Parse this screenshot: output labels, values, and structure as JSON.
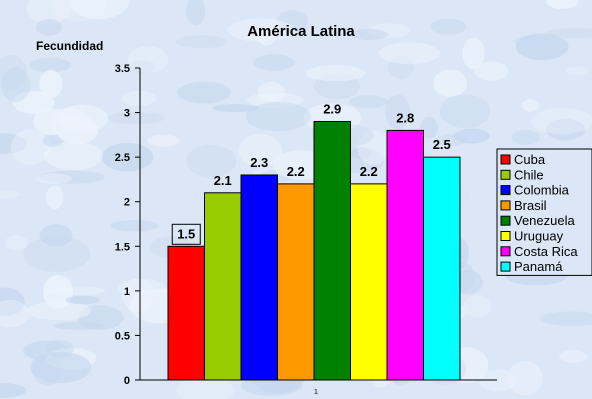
{
  "chart_data": {
    "type": "bar",
    "title": "América Latina",
    "ylabel": "Fecundidad",
    "xlabel": "",
    "categories": [
      "1"
    ],
    "ylim": [
      0,
      3.5
    ],
    "yticks": [
      "0",
      "0.5",
      "1",
      "1.5",
      "2",
      "2.5",
      "3",
      "3.5"
    ],
    "legend_position": "right",
    "grid": false,
    "series": [
      {
        "name": "Cuba",
        "values": [
          1.5
        ],
        "label": "1.5",
        "color": "#ff0000"
      },
      {
        "name": "Chile",
        "values": [
          2.1
        ],
        "label": "2.1",
        "color": "#99cc00"
      },
      {
        "name": "Colombia",
        "values": [
          2.3
        ],
        "label": "2.3",
        "color": "#0000ff"
      },
      {
        "name": "Brasil",
        "values": [
          2.2
        ],
        "label": "2.2",
        "color": "#ff9900"
      },
      {
        "name": "Venezuela",
        "values": [
          2.9
        ],
        "label": "2.9",
        "color": "#008000"
      },
      {
        "name": "Uruguay",
        "values": [
          2.2
        ],
        "label": "2.2",
        "color": "#ffff00"
      },
      {
        "name": "Costa Rica",
        "values": [
          2.8
        ],
        "label": "2.8",
        "color": "#ff00ff"
      },
      {
        "name": "Panamá",
        "values": [
          2.5
        ],
        "label": "2.5",
        "color": "#00ffff"
      }
    ]
  }
}
